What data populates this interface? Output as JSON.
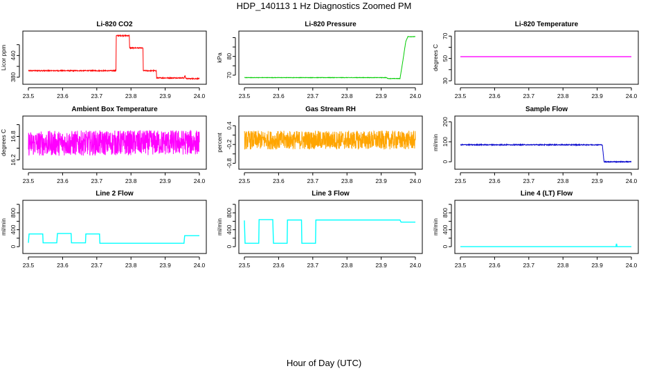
{
  "figure": {
    "title": "HDP_140113  1 Hz Diagnostics Zoomed PM",
    "xlabel": "Hour of Day (UTC)"
  },
  "chart_data": [
    {
      "type": "line",
      "title": "Li-820 CO2",
      "ylabel": "Licor ppm",
      "color": "#ff0000",
      "xlim": [
        23.5,
        24.0
      ],
      "ylim": [
        370,
        500
      ],
      "xticks": [
        23.5,
        23.6,
        23.7,
        23.8,
        23.9,
        24.0
      ],
      "yticks": [
        380,
        410,
        440,
        470
      ],
      "ytick_labels": [
        "380",
        "",
        "440",
        ""
      ],
      "noise": 1.2,
      "series": [
        {
          "x": [
            23.5,
            23.756,
            23.757,
            23.795,
            23.796,
            23.835,
            23.836,
            23.874,
            23.875,
            23.955,
            23.958,
            23.96,
            23.963,
            24.0
          ],
          "y": [
            398,
            398,
            495,
            495,
            461,
            461,
            398,
            398,
            378,
            378,
            384,
            378,
            376,
            376
          ]
        }
      ]
    },
    {
      "type": "line",
      "title": "Li-820 Pressure",
      "ylabel": "kPa",
      "color": "#00cc00",
      "xlim": [
        23.5,
        24.0
      ],
      "ylim": [
        67,
        92
      ],
      "xticks": [
        23.5,
        23.6,
        23.7,
        23.8,
        23.9,
        24.0
      ],
      "yticks": [
        70,
        75,
        80,
        85,
        90
      ],
      "ytick_labels": [
        "70",
        "",
        "80",
        "",
        ""
      ],
      "noise": 0.1,
      "series": [
        {
          "x": [
            23.5,
            23.915,
            23.92,
            23.955,
            23.962,
            23.972,
            23.978,
            24.0
          ],
          "y": [
            68.7,
            68.7,
            68.2,
            68.2,
            76,
            88,
            90.5,
            90.5
          ]
        }
      ]
    },
    {
      "type": "line",
      "title": "Li-820 Temperature",
      "ylabel": "degrees C",
      "color": "#ff00ff",
      "xlim": [
        23.5,
        24.0
      ],
      "ylim": [
        30,
        72
      ],
      "xticks": [
        23.5,
        23.6,
        23.7,
        23.8,
        23.9,
        24.0
      ],
      "yticks": [
        30,
        40,
        50,
        60,
        70
      ],
      "ytick_labels": [
        "30",
        "",
        "50",
        "",
        "70"
      ],
      "noise": 0,
      "series": [
        {
          "x": [
            23.5,
            24.0
          ],
          "y": [
            51.6,
            51.6
          ]
        }
      ]
    },
    {
      "type": "line",
      "title": "Ambient Box Temperature",
      "ylabel": "degrees C",
      "color": "#ff00ff",
      "xlim": [
        23.5,
        24.0
      ],
      "ylim": [
        16.05,
        17.25
      ],
      "xticks": [
        23.5,
        23.6,
        23.7,
        23.8,
        23.9,
        24.0
      ],
      "yticks": [
        16.2,
        16.5,
        16.8,
        17.1
      ],
      "ytick_labels": [
        "16.2",
        "",
        "16.8",
        ""
      ],
      "noise": 0.32,
      "series": [
        {
          "x": [
            23.5,
            24.0
          ],
          "y": [
            16.62,
            16.65
          ]
        }
      ]
    },
    {
      "type": "line",
      "title": "Gas Stream RH",
      "ylabel": "percent",
      "color": "#ffa500",
      "xlim": [
        23.5,
        24.0
      ],
      "ylim": [
        -0.88,
        0.62
      ],
      "xticks": [
        23.5,
        23.6,
        23.7,
        23.8,
        23.9,
        24.0
      ],
      "yticks": [
        -0.8,
        -0.5,
        -0.2,
        0.1,
        0.4
      ],
      "ytick_labels": [
        "-0.8",
        "",
        "-0.2",
        "",
        "0.4"
      ],
      "noise": 0.3,
      "series": [
        {
          "x": [
            23.5,
            24.0
          ],
          "y": [
            -0.06,
            -0.06
          ]
        }
      ]
    },
    {
      "type": "line",
      "title": "Sample Flow",
      "ylabel": "ml/min",
      "color": "#0000cc",
      "xlim": [
        23.5,
        24.0
      ],
      "ylim": [
        -20,
        215
      ],
      "xticks": [
        23.5,
        23.6,
        23.7,
        23.8,
        23.9,
        24.0
      ],
      "yticks": [
        0,
        100,
        200
      ],
      "ytick_labels": [
        "0",
        "100",
        "200"
      ],
      "noise": 2,
      "series": [
        {
          "x": [
            23.5,
            23.915,
            23.92,
            24.0
          ],
          "y": [
            85,
            85,
            0,
            0
          ]
        }
      ]
    },
    {
      "type": "line",
      "title": "Line 2 Flow",
      "ylabel": "ml/min",
      "color": "#00ffff",
      "xlim": [
        23.5,
        24.0
      ],
      "ylim": [
        -80,
        1030
      ],
      "xticks": [
        23.5,
        23.6,
        23.7,
        23.8,
        23.9,
        24.0
      ],
      "yticks": [
        0,
        200,
        400,
        600,
        800,
        1000
      ],
      "ytick_labels": [
        "0",
        "",
        "400",
        "",
        "800",
        ""
      ],
      "noise": 0,
      "series": [
        {
          "x": [
            23.5,
            23.502,
            23.542,
            23.543,
            23.583,
            23.585,
            23.625,
            23.626,
            23.667,
            23.668,
            23.708,
            23.709,
            23.955,
            23.957,
            24.0
          ],
          "y": [
            90,
            300,
            300,
            90,
            90,
            310,
            310,
            90,
            90,
            300,
            300,
            80,
            80,
            260,
            260
          ]
        }
      ]
    },
    {
      "type": "line",
      "title": "Line 3 Flow",
      "ylabel": "ml/min",
      "color": "#00ffff",
      "xlim": [
        23.5,
        24.0
      ],
      "ylim": [
        -80,
        1030
      ],
      "xticks": [
        23.5,
        23.6,
        23.7,
        23.8,
        23.9,
        24.0
      ],
      "yticks": [
        0,
        200,
        400,
        600,
        800,
        1000
      ],
      "ytick_labels": [
        "0",
        "",
        "400",
        "",
        "800",
        ""
      ],
      "noise": 0,
      "series": [
        {
          "x": [
            23.5,
            23.502,
            23.542,
            23.543,
            23.583,
            23.585,
            23.625,
            23.626,
            23.667,
            23.668,
            23.708,
            23.709,
            23.955,
            23.958,
            24.0
          ],
          "y": [
            620,
            80,
            80,
            640,
            640,
            80,
            80,
            630,
            630,
            80,
            80,
            630,
            630,
            580,
            580
          ]
        }
      ]
    },
    {
      "type": "line",
      "title": "Line 4 (LT) Flow",
      "ylabel": "ml/min",
      "color": "#00ffff",
      "xlim": [
        23.5,
        24.0
      ],
      "ylim": [
        -80,
        1030
      ],
      "xticks": [
        23.5,
        23.6,
        23.7,
        23.8,
        23.9,
        24.0
      ],
      "yticks": [
        0,
        200,
        400,
        600,
        800,
        1000
      ],
      "ytick_labels": [
        "0",
        "",
        "400",
        "",
        "800",
        ""
      ],
      "noise": 0,
      "series": [
        {
          "x": [
            23.5,
            23.955,
            23.956,
            23.957,
            23.958,
            24.0
          ],
          "y": [
            0,
            0,
            60,
            60,
            0,
            0
          ]
        }
      ]
    }
  ]
}
